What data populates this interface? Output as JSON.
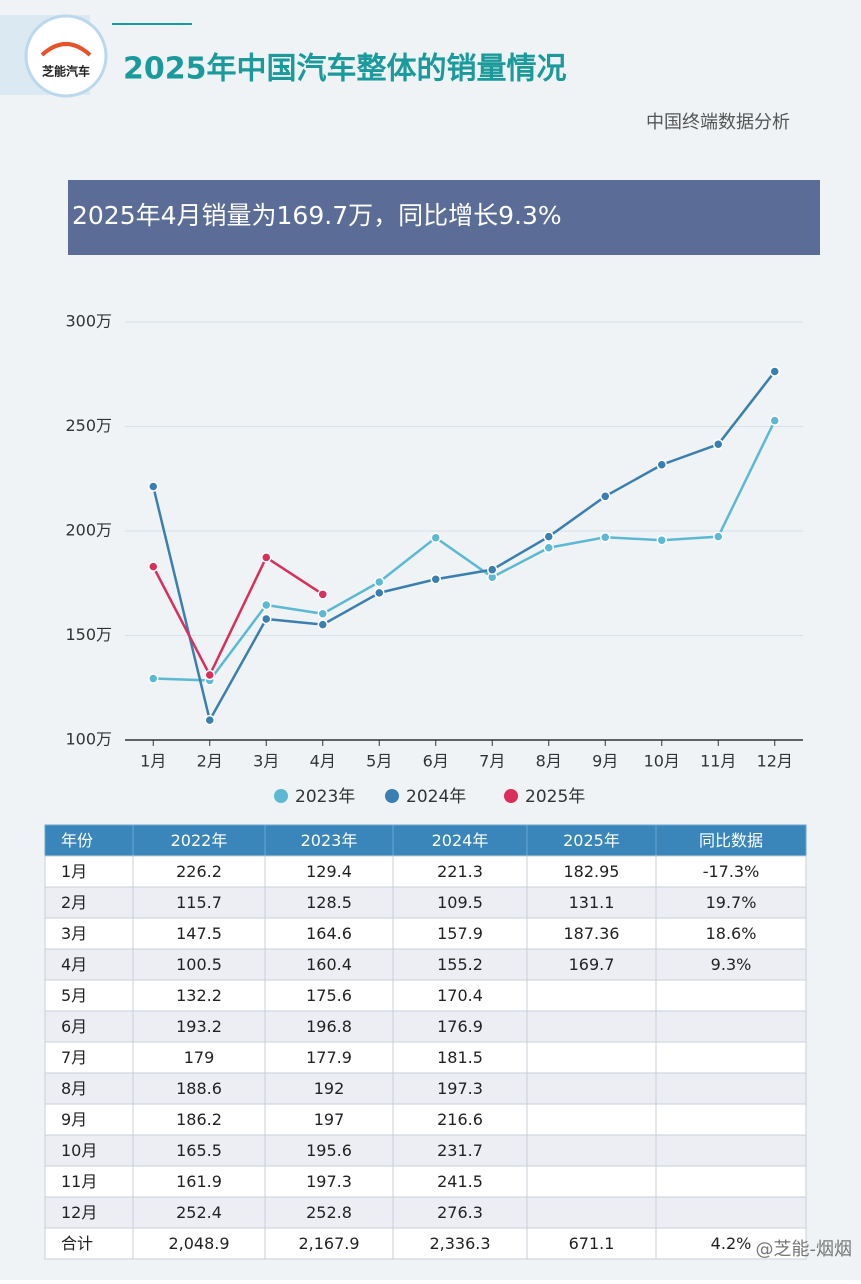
{
  "header": {
    "logo": "芝能汽车",
    "title": "2025年中国汽车整体的销量情况",
    "subtitle": "中国终端数据分析"
  },
  "banner": "2025年4月销量为169.7万，同比增长9.3%",
  "chart_data": {
    "type": "line",
    "categories": [
      "1月",
      "2月",
      "3月",
      "4月",
      "5月",
      "6月",
      "7月",
      "8月",
      "9月",
      "10月",
      "11月",
      "12月"
    ],
    "series": [
      {
        "name": "2023年",
        "color": "#5cb9d1",
        "values": [
          129.4,
          128.5,
          164.6,
          160.4,
          175.6,
          196.8,
          177.9,
          192,
          197,
          195.6,
          197.3,
          252.8
        ]
      },
      {
        "name": "2024年",
        "color": "#3b7eb0",
        "values": [
          221.3,
          109.5,
          157.9,
          155.2,
          170.4,
          176.9,
          181.5,
          197.3,
          216.6,
          231.7,
          241.5,
          276.3
        ]
      },
      {
        "name": "2025年",
        "color": "#d92f5a",
        "values": [
          182.95,
          131.1,
          187.36,
          169.7,
          null,
          null,
          null,
          null,
          null,
          null,
          null,
          null
        ]
      }
    ],
    "ylim": [
      100,
      300
    ],
    "yticks": [
      {
        "value": 100,
        "label": "100万"
      },
      {
        "value": 150,
        "label": "150万"
      },
      {
        "value": 200,
        "label": "200万"
      },
      {
        "value": 250,
        "label": "250万"
      },
      {
        "value": 300,
        "label": "300万"
      }
    ],
    "grid": true
  },
  "table": {
    "header": [
      "年份",
      "2022年",
      "2023年",
      "2024年",
      "2025年",
      "同比数据"
    ],
    "rows": [
      [
        "1月",
        "226.2",
        "129.4",
        "221.3",
        "182.95",
        "-17.3%"
      ],
      [
        "2月",
        "115.7",
        "128.5",
        "109.5",
        "131.1",
        "19.7%"
      ],
      [
        "3月",
        "147.5",
        "164.6",
        "157.9",
        "187.36",
        "18.6%"
      ],
      [
        "4月",
        "100.5",
        "160.4",
        "155.2",
        "169.7",
        "9.3%"
      ],
      [
        "5月",
        "132.2",
        "175.6",
        "170.4"
      ],
      [
        "6月",
        "193.2",
        "196.8",
        "176.9"
      ],
      [
        "7月",
        "179",
        "177.9",
        "181.5"
      ],
      [
        "8月",
        "188.6",
        "192",
        "197.3"
      ],
      [
        "9月",
        "186.2",
        "197",
        "216.6"
      ],
      [
        "10月",
        "165.5",
        "195.6",
        "231.7"
      ],
      [
        "11月",
        "161.9",
        "197.3",
        "241.5"
      ],
      [
        "12月",
        "252.4",
        "252.8",
        "276.3"
      ],
      [
        "合计",
        "2,048.9",
        "2,167.9",
        "2,336.3",
        "671.1",
        "4.2%"
      ]
    ]
  },
  "watermark": "@芝能-烟烟"
}
